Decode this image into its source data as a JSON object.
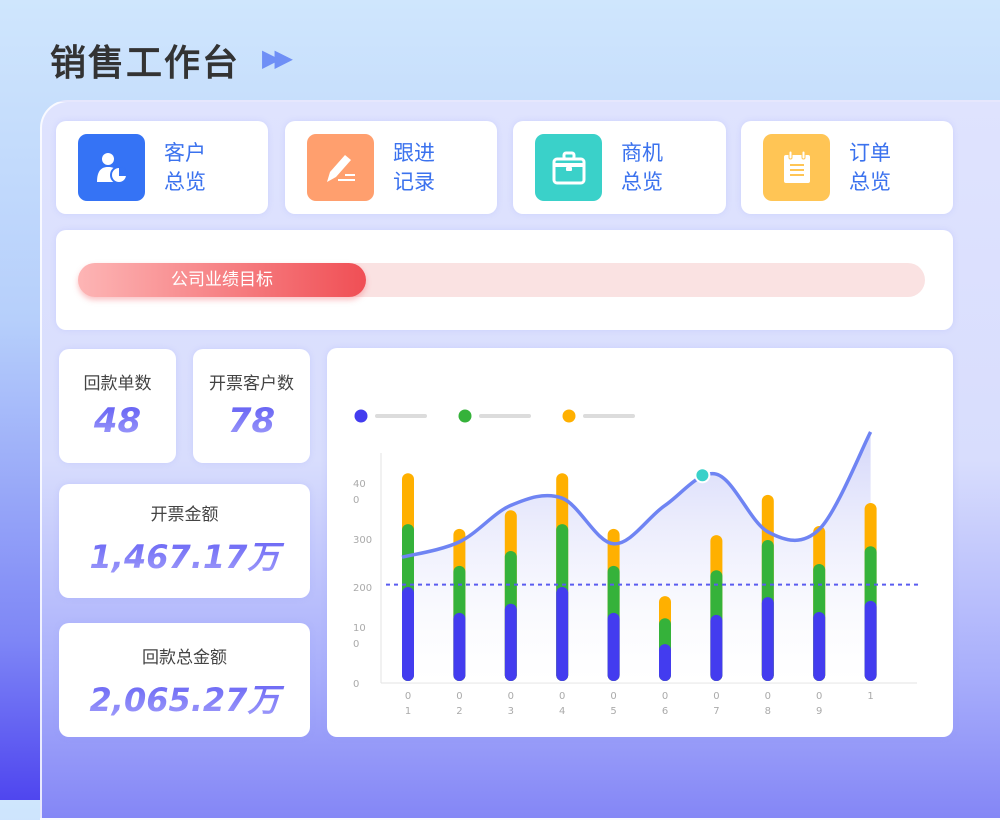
{
  "header": {
    "title": "销售工作台",
    "arrow_icon": "double-chevron-right-icon"
  },
  "nav": [
    {
      "line1": "客户",
      "line2": "总览",
      "icon": "customer-chart-icon",
      "color": "#3573f5"
    },
    {
      "line1": "跟进",
      "line2": "记录",
      "icon": "pencil-icon",
      "color": "#ff9f6e"
    },
    {
      "line1": "商机",
      "line2": "总览",
      "icon": "briefcase-icon",
      "color": "#3ad1c9"
    },
    {
      "line1": "订单",
      "line2": "总览",
      "icon": "notepad-icon",
      "color": "#ffc555"
    }
  ],
  "progress": {
    "label": "公司业绩目标",
    "percent": 34,
    "fill_color": "#f04f55",
    "track_color": "#fae2e2"
  },
  "stats": {
    "return_orders": {
      "label": "回款单数",
      "value": "48"
    },
    "invoice_customers": {
      "label": "开票客户数",
      "value": "78"
    },
    "invoice_amount": {
      "label": "开票金额",
      "value": "1,467.17万"
    },
    "return_amount": {
      "label": "回款总金额",
      "value": "2,065.27万"
    }
  },
  "chart_data": {
    "type": "bar",
    "stacked": true,
    "categories": [
      "0\n1",
      "0\n2",
      "0\n3",
      "0\n4",
      "0\n5",
      "0\n6",
      "0\n7",
      "0\n8",
      "0\n9",
      "1"
    ],
    "yticks": [
      {
        "value": 0,
        "label": "0"
      },
      {
        "value": 100,
        "label": "10\n0"
      },
      {
        "value": 200,
        "label": "200"
      },
      {
        "value": 300,
        "label": "300"
      },
      {
        "value": 400,
        "label": "40\n0"
      }
    ],
    "ylim": [
      0,
      480
    ],
    "legend_placement": "top-left",
    "series": [
      {
        "color": "#433cef",
        "values": [
          200,
          146,
          165,
          200,
          146,
          81,
          142,
          179,
          148,
          171
        ]
      },
      {
        "color": "#35b23a",
        "values": [
          131,
          98,
          110,
          131,
          98,
          54,
          93,
          119,
          100,
          114
        ]
      },
      {
        "color": "#ffb000",
        "values": [
          106,
          77,
          85,
          106,
          77,
          46,
          73,
          94,
          79,
          90
        ]
      }
    ],
    "line": {
      "type": "line",
      "smooth": true,
      "color": "#6f84f3",
      "values": [
        262,
        294,
        370,
        385,
        290,
        370,
        435,
        315,
        320,
        523
      ],
      "highlight_index": 6,
      "highlight_color": "#3ad1c9"
    },
    "reference_line": {
      "value": 205,
      "color": "#5a5cf0",
      "style": "dashed"
    },
    "grid": false
  }
}
